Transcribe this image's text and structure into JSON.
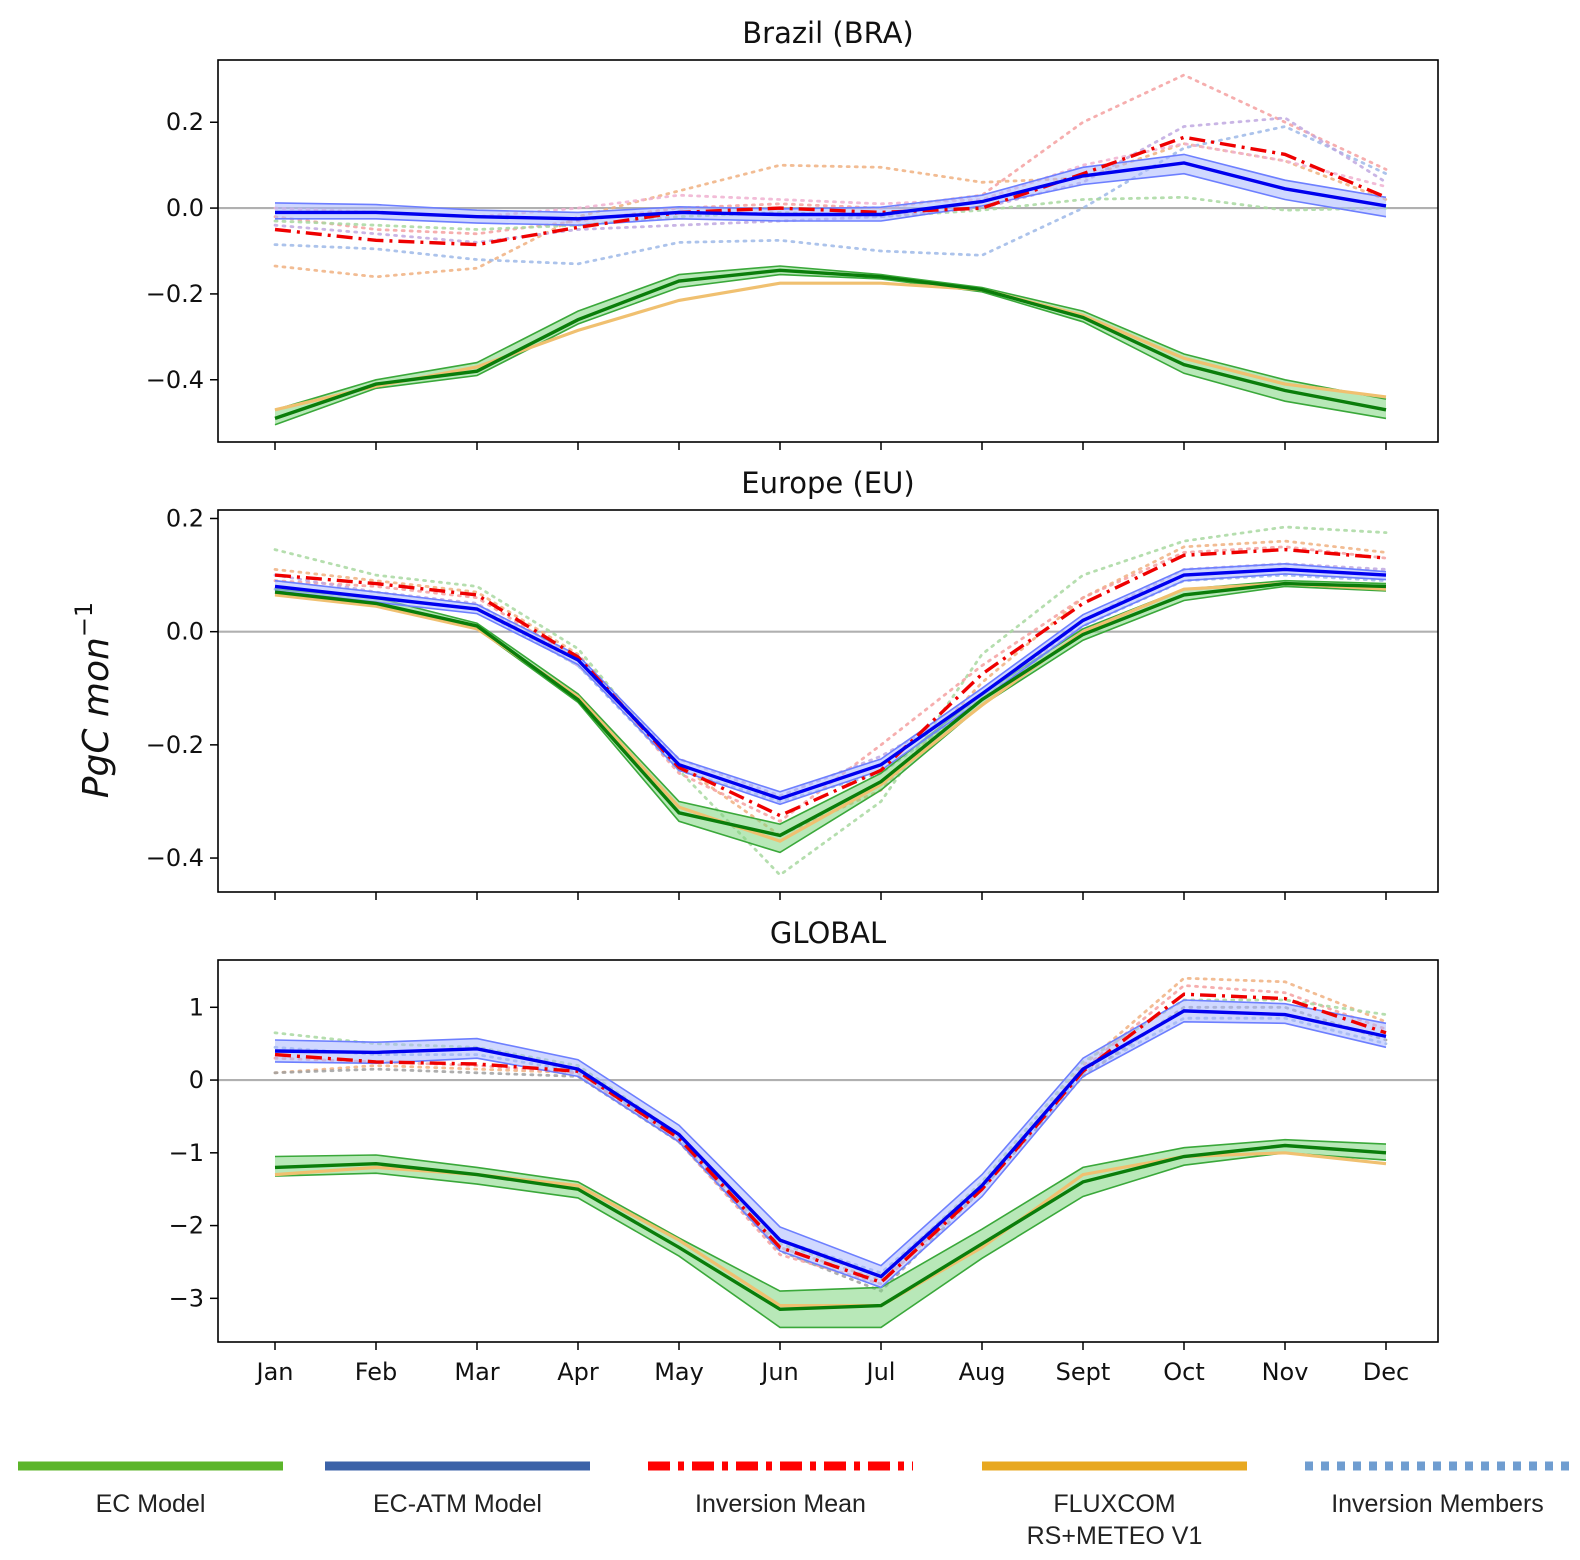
{
  "ylabel_base": "PgC mon",
  "ylabel_sup": "−1",
  "months": [
    "Jan",
    "Feb",
    "Mar",
    "Apr",
    "May",
    "Jun",
    "Jul",
    "Aug",
    "Sept",
    "Oct",
    "Nov",
    "Dec"
  ],
  "legend": [
    {
      "key": "ec",
      "lines": [
        "EC Model"
      ],
      "color": "#5cb52a",
      "style": "solid"
    },
    {
      "key": "ecatm",
      "lines": [
        "EC-ATM Model"
      ],
      "color": "#3b62a8",
      "style": "solid"
    },
    {
      "key": "invmean",
      "lines": [
        "Inversion Mean"
      ],
      "color": "#ff0000",
      "style": "dashdot"
    },
    {
      "key": "fluxcom",
      "lines": [
        "FLUXCOM",
        "RS+METEO V1"
      ],
      "color": "#e8a820",
      "style": "solid"
    },
    {
      "key": "invmem",
      "lines": [
        "Inversion Members"
      ],
      "color": "#6f9dd0",
      "style": "dotted"
    }
  ],
  "colors": {
    "ec_line": "#0a7d0a",
    "ec_band": "#7ed67e",
    "ec_band_edge": "#3aa83a",
    "ecatm_line": "#0000ee",
    "ecatm_band": "#a9b8ff",
    "ecatm_band_edge": "#6d7fff",
    "inv_mean": "#ee0000",
    "fluxcom": "#f0c070",
    "zero_line": "#b0b0b0"
  },
  "chart_data": [
    {
      "type": "line",
      "title": "Brazil (BRA)",
      "ylim": [
        -0.545,
        0.345
      ],
      "yticks": [
        0.2,
        0.0,
        -0.2,
        -0.4
      ],
      "ytick_labels": [
        "0.2",
        "0.0",
        "−0.2",
        "−0.4"
      ],
      "show_xticklabels": false,
      "ec_model": {
        "mean": [
          -0.49,
          -0.41,
          -0.38,
          -0.26,
          -0.17,
          -0.145,
          -0.16,
          -0.19,
          -0.255,
          -0.365,
          -0.425,
          -0.47
        ],
        "low": [
          -0.505,
          -0.42,
          -0.39,
          -0.27,
          -0.185,
          -0.155,
          -0.165,
          -0.195,
          -0.265,
          -0.385,
          -0.45,
          -0.49
        ],
        "high": [
          -0.47,
          -0.4,
          -0.36,
          -0.24,
          -0.155,
          -0.135,
          -0.155,
          -0.185,
          -0.24,
          -0.34,
          -0.4,
          -0.445
        ]
      },
      "ec_atm_model": {
        "mean": [
          -0.01,
          -0.01,
          -0.02,
          -0.025,
          -0.01,
          -0.015,
          -0.015,
          0.015,
          0.075,
          0.105,
          0.045,
          0.005
        ],
        "low": [
          -0.025,
          -0.025,
          -0.035,
          -0.04,
          -0.025,
          -0.03,
          -0.03,
          0.005,
          0.055,
          0.08,
          0.02,
          -0.02
        ],
        "high": [
          0.012,
          0.008,
          -0.005,
          -0.01,
          0.003,
          -0.002,
          0.002,
          0.03,
          0.095,
          0.125,
          0.065,
          0.025
        ]
      },
      "inversion_mean": [
        -0.05,
        -0.075,
        -0.085,
        -0.045,
        -0.01,
        0.0,
        -0.01,
        0.0,
        0.08,
        0.165,
        0.125,
        0.025
      ],
      "fluxcom": [
        -0.47,
        -0.415,
        -0.37,
        -0.285,
        -0.215,
        -0.175,
        -0.175,
        -0.19,
        -0.25,
        -0.35,
        -0.41,
        -0.44
      ],
      "inversion_members": [
        {
          "color": "#f0b080",
          "values": [
            -0.135,
            -0.16,
            -0.14,
            -0.02,
            0.04,
            0.1,
            0.095,
            0.06,
            0.07,
            0.15,
            0.11,
            0.02
          ]
        },
        {
          "color": "#f4a0a0",
          "values": [
            -0.02,
            -0.05,
            -0.06,
            -0.03,
            0.0,
            0.01,
            0.0,
            0.03,
            0.2,
            0.31,
            0.2,
            0.09
          ]
        },
        {
          "color": "#9eb8e8",
          "values": [
            -0.085,
            -0.095,
            -0.12,
            -0.13,
            -0.08,
            -0.075,
            -0.1,
            -0.11,
            0.0,
            0.14,
            0.19,
            0.08
          ]
        },
        {
          "color": "#a8d8a0",
          "values": [
            -0.03,
            -0.04,
            -0.05,
            -0.04,
            -0.02,
            -0.01,
            -0.02,
            -0.005,
            0.02,
            0.025,
            -0.005,
            0.0
          ]
        },
        {
          "color": "#c0a8e0",
          "values": [
            -0.04,
            -0.06,
            -0.08,
            -0.05,
            -0.04,
            -0.03,
            -0.02,
            0.0,
            0.06,
            0.19,
            0.21,
            0.06
          ]
        },
        {
          "color": "#f0b0d0",
          "values": [
            0.0,
            -0.01,
            -0.02,
            0.0,
            0.03,
            0.02,
            0.01,
            0.02,
            0.1,
            0.15,
            0.11,
            0.05
          ]
        }
      ]
    },
    {
      "type": "line",
      "title": "Europe (EU)",
      "ylim": [
        -0.46,
        0.215
      ],
      "yticks": [
        0.2,
        0.0,
        -0.2,
        -0.4
      ],
      "ytick_labels": [
        "0.2",
        "0.0",
        "−0.2",
        "−0.4"
      ],
      "show_xticklabels": false,
      "ec_model": {
        "mean": [
          0.07,
          0.05,
          0.01,
          -0.12,
          -0.32,
          -0.36,
          -0.265,
          -0.12,
          -0.005,
          0.065,
          0.085,
          0.08
        ],
        "low": [
          0.065,
          0.045,
          0.005,
          -0.125,
          -0.335,
          -0.39,
          -0.28,
          -0.13,
          -0.015,
          0.055,
          0.08,
          0.072
        ],
        "high": [
          0.075,
          0.06,
          0.015,
          -0.11,
          -0.3,
          -0.34,
          -0.25,
          -0.11,
          0.005,
          0.075,
          0.09,
          0.085
        ]
      },
      "ec_atm_model": {
        "mean": [
          0.08,
          0.06,
          0.04,
          -0.05,
          -0.235,
          -0.295,
          -0.235,
          -0.11,
          0.02,
          0.1,
          0.11,
          0.1
        ],
        "low": [
          0.072,
          0.052,
          0.032,
          -0.058,
          -0.245,
          -0.305,
          -0.245,
          -0.12,
          0.01,
          0.09,
          0.102,
          0.092
        ],
        "high": [
          0.09,
          0.07,
          0.048,
          -0.042,
          -0.225,
          -0.283,
          -0.225,
          -0.1,
          0.03,
          0.11,
          0.12,
          0.106
        ]
      },
      "inversion_mean": [
        0.1,
        0.085,
        0.065,
        -0.045,
        -0.24,
        -0.325,
        -0.245,
        -0.075,
        0.05,
        0.135,
        0.145,
        0.13
      ],
      "fluxcom": [
        0.065,
        0.045,
        0.005,
        -0.115,
        -0.31,
        -0.37,
        -0.27,
        -0.13,
        0.0,
        0.075,
        0.085,
        0.075
      ],
      "inversion_members": [
        {
          "color": "#a8d8a0",
          "values": [
            0.145,
            0.1,
            0.08,
            -0.03,
            -0.245,
            -0.43,
            -0.3,
            -0.04,
            0.1,
            0.16,
            0.185,
            0.175
          ]
        },
        {
          "color": "#f0b080",
          "values": [
            0.11,
            0.09,
            0.07,
            -0.04,
            -0.235,
            -0.36,
            -0.28,
            -0.09,
            0.06,
            0.15,
            0.16,
            0.14
          ]
        },
        {
          "color": "#f4a0a0",
          "values": [
            0.09,
            0.08,
            0.06,
            -0.05,
            -0.25,
            -0.335,
            -0.2,
            -0.06,
            0.06,
            0.14,
            0.15,
            0.13
          ]
        },
        {
          "color": "#c0a8e0",
          "values": [
            0.1,
            0.07,
            0.05,
            -0.06,
            -0.225,
            -0.29,
            -0.22,
            -0.12,
            0.02,
            0.11,
            0.12,
            0.11
          ]
        },
        {
          "color": "#9eb8e8",
          "values": [
            0.075,
            0.06,
            0.04,
            -0.06,
            -0.245,
            -0.3,
            -0.25,
            -0.12,
            0.01,
            0.09,
            0.1,
            0.09
          ]
        }
      ]
    },
    {
      "type": "line",
      "title": "GLOBAL",
      "ylim": [
        -3.6,
        1.65
      ],
      "yticks": [
        1,
        0,
        -1,
        -2,
        -3
      ],
      "ytick_labels": [
        "1",
        "0",
        "−1",
        "−2",
        "−3"
      ],
      "show_xticklabels": true,
      "ec_model": {
        "mean": [
          -1.2,
          -1.15,
          -1.3,
          -1.5,
          -2.3,
          -3.15,
          -3.1,
          -2.25,
          -1.4,
          -1.05,
          -0.9,
          -1.0
        ],
        "low": [
          -1.32,
          -1.28,
          -1.43,
          -1.62,
          -2.42,
          -3.4,
          -3.4,
          -2.45,
          -1.6,
          -1.17,
          -1.0,
          -1.1
        ],
        "high": [
          -1.05,
          -1.03,
          -1.2,
          -1.4,
          -2.17,
          -2.9,
          -2.85,
          -2.05,
          -1.2,
          -0.93,
          -0.82,
          -0.88
        ]
      },
      "ec_atm_model": {
        "mean": [
          0.4,
          0.38,
          0.43,
          0.15,
          -0.75,
          -2.2,
          -2.7,
          -1.45,
          0.15,
          0.95,
          0.9,
          0.6
        ],
        "low": [
          0.25,
          0.23,
          0.3,
          0.05,
          -0.85,
          -2.35,
          -2.85,
          -1.6,
          0.05,
          0.8,
          0.78,
          0.45
        ],
        "high": [
          0.55,
          0.52,
          0.57,
          0.28,
          -0.62,
          -2.02,
          -2.55,
          -1.3,
          0.3,
          1.1,
          1.05,
          0.78
        ]
      },
      "inversion_mean": [
        0.35,
        0.25,
        0.22,
        0.12,
        -0.8,
        -2.3,
        -2.78,
        -1.5,
        0.12,
        1.18,
        1.12,
        0.65
      ],
      "fluxcom": [
        -1.3,
        -1.2,
        -1.3,
        -1.45,
        -2.2,
        -3.1,
        -3.1,
        -2.3,
        -1.3,
        -1.05,
        -1.0,
        -1.15
      ],
      "inversion_members": [
        {
          "color": "#f0b080",
          "values": [
            0.1,
            0.2,
            0.15,
            0.1,
            -0.8,
            -2.3,
            -2.75,
            -1.5,
            0.2,
            1.4,
            1.35,
            0.8
          ]
        },
        {
          "color": "#f4a0a0",
          "values": [
            0.3,
            0.25,
            0.2,
            0.1,
            -0.85,
            -2.4,
            -2.8,
            -1.45,
            0.15,
            1.3,
            1.2,
            0.7
          ]
        },
        {
          "color": "#a8d8a0",
          "values": [
            0.65,
            0.5,
            0.45,
            0.2,
            -0.75,
            -2.25,
            -2.7,
            -1.4,
            0.25,
            1.1,
            1.1,
            0.9
          ]
        },
        {
          "color": "#9eb8e8",
          "values": [
            0.45,
            0.35,
            0.35,
            0.12,
            -0.8,
            -2.2,
            -2.65,
            -1.45,
            0.1,
            0.85,
            0.85,
            0.5
          ]
        },
        {
          "color": "#a0a0a0",
          "values": [
            0.1,
            0.15,
            0.1,
            0.05,
            -0.85,
            -2.35,
            -2.9,
            -1.5,
            0.05,
            1.0,
            1.0,
            0.55
          ]
        }
      ]
    }
  ]
}
